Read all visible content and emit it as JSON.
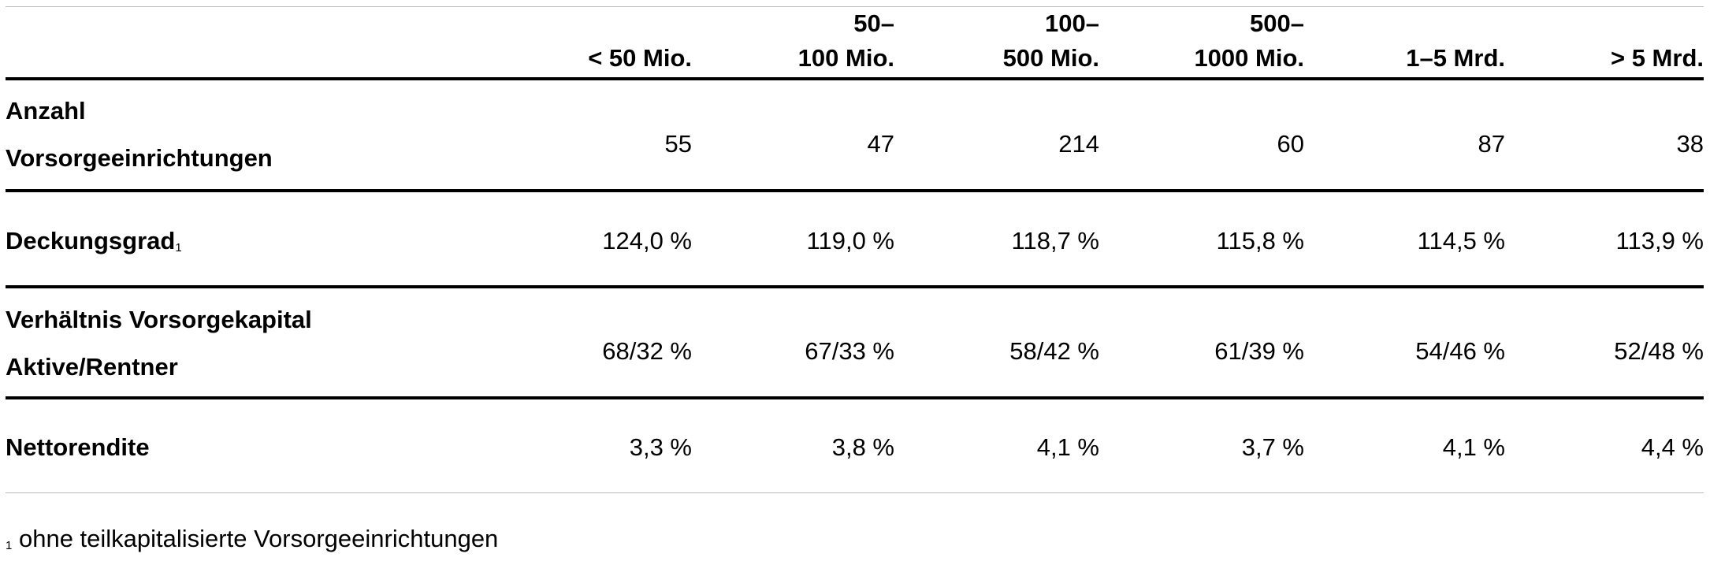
{
  "table": {
    "columns": [
      {
        "lines": [
          "< 50 Mio."
        ]
      },
      {
        "lines": [
          "50–",
          "100 Mio."
        ]
      },
      {
        "lines": [
          "100–",
          "500 Mio."
        ]
      },
      {
        "lines": [
          "500–",
          "1000 Mio."
        ]
      },
      {
        "lines": [
          "1–5 Mrd."
        ]
      },
      {
        "lines": [
          "> 5 Mrd."
        ]
      }
    ],
    "rows": [
      {
        "label_lines": [
          "Anzahl",
          "Vorsorgeeinrichtungen"
        ],
        "footnote_marker": "",
        "values": [
          "55",
          "47",
          "214",
          "60",
          "87",
          "38"
        ]
      },
      {
        "label_lines": [
          "Deckungsgrad"
        ],
        "footnote_marker": "1",
        "values": [
          "124,0 %",
          "119,0 %",
          "118,7 %",
          "115,8 %",
          "114,5 %",
          "113,9 %"
        ]
      },
      {
        "label_lines": [
          "Verhältnis Vorsorgekapital",
          "Aktive/Rentner"
        ],
        "footnote_marker": "",
        "values": [
          "68/32 %",
          "67/33 %",
          "58/42 %",
          "61/39 %",
          "54/46 %",
          "52/48 %"
        ]
      },
      {
        "label_lines": [
          "Nettorendite"
        ],
        "footnote_marker": "",
        "values": [
          "3,3 %",
          "3,8 %",
          "4,1 %",
          "3,7 %",
          "4,1 %",
          "4,4 %"
        ]
      }
    ]
  },
  "footnote": {
    "marker": "1",
    "text": "ohne teilkapitalisierte Vorsorgeeinrichtungen"
  }
}
